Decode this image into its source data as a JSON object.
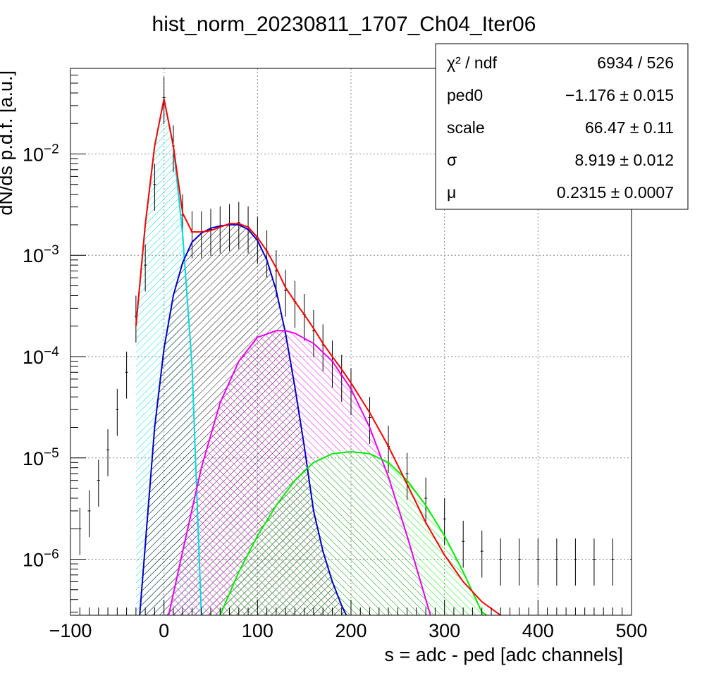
{
  "chart_data": {
    "type": "line",
    "title": "hist_norm_20230811_1707_Ch04_Iter06",
    "xlabel": "s = adc - ped [adc channels]",
    "ylabel": "dN/ds p.d.f. [a.u.]",
    "xlim": [
      -100,
      500
    ],
    "ylim": [
      2.8e-07,
      0.07
    ],
    "yscale": "log",
    "grid": true,
    "x_ticks": [
      {
        "value": -100,
        "label": "−100"
      },
      {
        "value": 0,
        "label": "0"
      },
      {
        "value": 100,
        "label": "100"
      },
      {
        "value": 200,
        "label": "200"
      },
      {
        "value": 300,
        "label": "300"
      },
      {
        "value": 400,
        "label": "400"
      },
      {
        "value": 500,
        "label": "500"
      }
    ],
    "y_ticks": [
      {
        "value": 1e-06,
        "base": "10",
        "exp": "−6"
      },
      {
        "value": 1e-05,
        "base": "10",
        "exp": "−5"
      },
      {
        "value": 0.0001,
        "base": "10",
        "exp": "−4"
      },
      {
        "value": 0.001,
        "base": "10",
        "exp": "−3"
      },
      {
        "value": 0.01,
        "base": "10",
        "exp": "−2"
      }
    ],
    "stats_box": {
      "rows": [
        {
          "name": "χ² / ndf",
          "value": "6934 / 526"
        },
        {
          "name": "ped0",
          "value": "−1.176 ± 0.015"
        },
        {
          "name": "scale",
          "value": "66.47 ± 0.11"
        },
        {
          "name": "σ",
          "value": "8.919 ± 0.012"
        },
        {
          "name": "μ",
          "value": "0.2315 ± 0.0007"
        }
      ]
    },
    "series": [
      {
        "color": "#000000",
        "kind": "histogram",
        "x": [
          -100,
          -90,
          -80,
          -70,
          -60,
          -50,
          -40,
          -30,
          -20,
          -10,
          0,
          10,
          20,
          30,
          40,
          50,
          60,
          70,
          80,
          90,
          100,
          110,
          120,
          130,
          140,
          150,
          160,
          170,
          180,
          190,
          200,
          220,
          240,
          260,
          280,
          300,
          320,
          340,
          360,
          380,
          400,
          420,
          440,
          460,
          480,
          500
        ],
        "y": [
          1e-06,
          2e-06,
          3e-06,
          6e-06,
          1.2e-05,
          3e-05,
          7e-05,
          0.00025,
          0.0008,
          0.005,
          0.036,
          0.012,
          0.0025,
          0.0017,
          0.0017,
          0.0018,
          0.0019,
          0.002,
          0.0021,
          0.0019,
          0.0015,
          0.0011,
          0.0007,
          0.00045,
          0.00035,
          0.00026,
          0.00018,
          0.00013,
          9e-05,
          6.5e-05,
          4.8e-05,
          2.5e-05,
          1.3e-05,
          7e-06,
          4e-06,
          2.5e-06,
          1.5e-06,
          1.2e-06,
          1e-06,
          1e-06,
          1e-06,
          1e-06,
          1e-06,
          1e-06,
          1e-06,
          1e-06
        ]
      },
      {
        "color": "#ff0000",
        "kind": "total-fit",
        "x": [
          -30,
          -20,
          -10,
          0,
          10,
          20,
          30,
          40,
          50,
          60,
          70,
          80,
          90,
          100,
          110,
          120,
          130,
          140,
          150,
          160,
          170,
          180,
          190,
          200,
          220,
          240,
          260,
          280,
          300,
          320,
          340,
          360
        ],
        "y": [
          0.0002,
          0.002,
          0.012,
          0.035,
          0.012,
          0.0026,
          0.0017,
          0.0017,
          0.00175,
          0.0019,
          0.00205,
          0.00205,
          0.0019,
          0.0015,
          0.0011,
          0.00075,
          0.00048,
          0.00035,
          0.00026,
          0.00019,
          0.000135,
          0.0001,
          7.5e-05,
          5.5e-05,
          2.8e-05,
          1.3e-05,
          5.5e-06,
          2.3e-06,
          1.1e-06,
          6e-07,
          3.8e-07,
          2.8e-07
        ]
      },
      {
        "color": "#00dddd",
        "kind": "pedestal",
        "x": [
          -30,
          -20,
          -10,
          0,
          10,
          20,
          30,
          40
        ],
        "y": [
          0.0002,
          0.002,
          0.012,
          0.035,
          0.012,
          0.0016,
          8e-05,
          2.8e-07
        ]
      },
      {
        "color": "#0000cc",
        "kind": "1-pe",
        "x": [
          -26,
          -10,
          0,
          10,
          20,
          30,
          40,
          50,
          60,
          70,
          80,
          90,
          100,
          110,
          120,
          130,
          140,
          150,
          160,
          170,
          180,
          190,
          195
        ],
        "y": [
          2.8e-07,
          2e-05,
          0.00012,
          0.0004,
          0.00085,
          0.00135,
          0.00165,
          0.00185,
          0.00195,
          0.002,
          0.002,
          0.0018,
          0.0014,
          0.0009,
          0.00045,
          0.00017,
          5e-05,
          1.3e-05,
          3e-06,
          1.2e-06,
          6e-07,
          3.5e-07,
          2.8e-07
        ]
      },
      {
        "color": "#ee00ee",
        "kind": "2-pe",
        "x": [
          5,
          20,
          40,
          60,
          80,
          100,
          120,
          130,
          140,
          160,
          180,
          200,
          220,
          240,
          260,
          280,
          285
        ],
        "y": [
          2.8e-07,
          1.2e-06,
          8e-06,
          3.5e-05,
          9e-05,
          0.000155,
          0.00018,
          0.00018,
          0.00017,
          0.000135,
          9e-05,
          4.8e-05,
          2e-05,
          6.5e-06,
          1.7e-06,
          4e-07,
          2.8e-07
        ]
      },
      {
        "color": "#00ee00",
        "kind": "3-pe",
        "x": [
          60,
          80,
          100,
          120,
          140,
          160,
          180,
          200,
          220,
          240,
          260,
          280,
          300,
          320,
          340,
          345
        ],
        "y": [
          2.8e-07,
          7.5e-07,
          1.7e-06,
          3.4e-06,
          6e-06,
          9e-06,
          1.1e-05,
          1.15e-05,
          1.1e-05,
          9e-06,
          6e-06,
          3.4e-06,
          1.7e-06,
          7.5e-07,
          3e-07,
          2.8e-07
        ]
      }
    ]
  }
}
